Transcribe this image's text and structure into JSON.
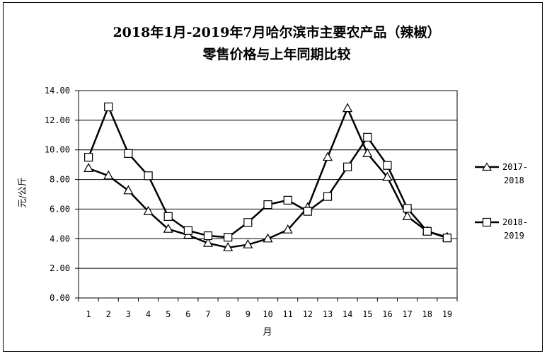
{
  "chart_data": {
    "type": "line",
    "title_line1": "2018年1月-2019年7月哈尔滨市主要农产品（辣椒）",
    "title_line2": "零售价格与上年同期比较",
    "xlabel": "月",
    "ylabel": "元/公斤",
    "ylim": [
      0,
      14
    ],
    "yticks": [
      "0.00",
      "2.00",
      "4.00",
      "6.00",
      "8.00",
      "10.00",
      "12.00",
      "14.00"
    ],
    "categories": [
      "1",
      "2",
      "3",
      "4",
      "5",
      "6",
      "7",
      "8",
      "9",
      "10",
      "11",
      "12",
      "13",
      "14",
      "15",
      "16",
      "17",
      "18",
      "19"
    ],
    "grid": "horizontal",
    "legend_position": "right",
    "series": [
      {
        "name_line1": "2017-",
        "name_line2": "2018",
        "marker": "triangle",
        "values": [
          8.75,
          8.25,
          7.25,
          5.85,
          4.65,
          4.25,
          3.7,
          3.4,
          3.6,
          4.0,
          4.6,
          6.1,
          9.5,
          12.8,
          9.75,
          8.15,
          5.5,
          4.5,
          4.1
        ]
      },
      {
        "name_line1": "2018-",
        "name_line2": "2019",
        "marker": "square",
        "values": [
          9.5,
          12.9,
          9.75,
          8.25,
          5.5,
          4.55,
          4.2,
          4.1,
          5.1,
          6.3,
          6.6,
          5.85,
          6.85,
          8.85,
          10.85,
          8.95,
          6.05,
          4.5,
          4.05
        ]
      }
    ]
  }
}
